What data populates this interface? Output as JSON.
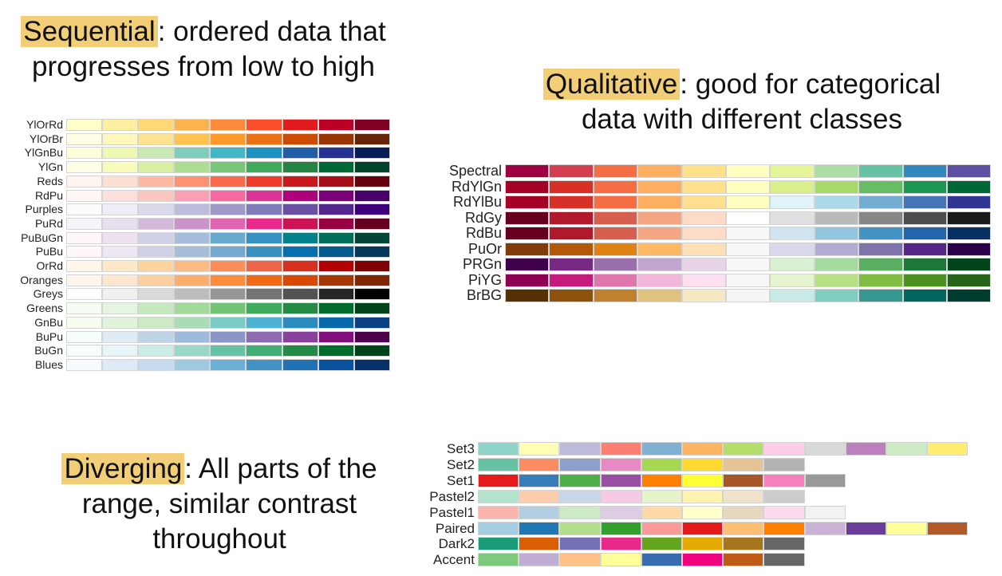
{
  "sequential": {
    "caption_highlight": "Sequential",
    "caption_line1_rest": ": ordered data that",
    "caption_line2": "progresses from low to high",
    "palettes": [
      {
        "name": "YlOrRd",
        "colors": [
          "#ffffcc",
          "#ffeda0",
          "#fed976",
          "#feb24c",
          "#fd8d3c",
          "#fc4e2a",
          "#e31a1c",
          "#bd0026",
          "#800026"
        ]
      },
      {
        "name": "YlOrBr",
        "colors": [
          "#ffffe5",
          "#fff7bc",
          "#fee391",
          "#fec44f",
          "#fe9929",
          "#ec7014",
          "#cc4c02",
          "#993404",
          "#662506"
        ]
      },
      {
        "name": "YlGnBu",
        "colors": [
          "#ffffd9",
          "#edf8b1",
          "#c7e9b4",
          "#7fcdbb",
          "#41b6c4",
          "#1d91c0",
          "#225ea8",
          "#253494",
          "#081d58"
        ]
      },
      {
        "name": "YlGn",
        "colors": [
          "#ffffe5",
          "#f7fcb9",
          "#d9f0a3",
          "#addd8e",
          "#78c679",
          "#41ab5d",
          "#238443",
          "#006837",
          "#004529"
        ]
      },
      {
        "name": "Reds",
        "colors": [
          "#fff5f0",
          "#fee0d2",
          "#fcbba1",
          "#fc9272",
          "#fb6a4a",
          "#ef3b2c",
          "#cb181d",
          "#a50f15",
          "#67000d"
        ]
      },
      {
        "name": "RdPu",
        "colors": [
          "#fff7f3",
          "#fde0dd",
          "#fcc5c0",
          "#fa9fb5",
          "#f768a1",
          "#dd3497",
          "#ae017e",
          "#7a0177",
          "#49006a"
        ]
      },
      {
        "name": "Purples",
        "colors": [
          "#fcfbfd",
          "#efedf5",
          "#dadaeb",
          "#bcbddc",
          "#9e9ac8",
          "#807dba",
          "#6a51a3",
          "#54278f",
          "#3f007d"
        ]
      },
      {
        "name": "PuRd",
        "colors": [
          "#f7f4f9",
          "#e7e1ef",
          "#d4b9da",
          "#c994c7",
          "#df65b0",
          "#e7298a",
          "#ce1256",
          "#980043",
          "#67001f"
        ]
      },
      {
        "name": "PuBuGn",
        "colors": [
          "#fff7fb",
          "#ece2f0",
          "#d0d1e6",
          "#a6bddb",
          "#67a9cf",
          "#3690c0",
          "#02818a",
          "#016c59",
          "#014636"
        ]
      },
      {
        "name": "PuBu",
        "colors": [
          "#fff7fb",
          "#ece7f2",
          "#d0d1e6",
          "#a6bddb",
          "#74a9cf",
          "#3690c0",
          "#0570b0",
          "#045a8d",
          "#023858"
        ]
      },
      {
        "name": "OrRd",
        "colors": [
          "#fff7ec",
          "#fee8c8",
          "#fdd49e",
          "#fdbb84",
          "#fc8d59",
          "#ef6548",
          "#d7301f",
          "#b30000",
          "#7f0000"
        ]
      },
      {
        "name": "Oranges",
        "colors": [
          "#fff5eb",
          "#fee6ce",
          "#fdd0a2",
          "#fdae6b",
          "#fd8d3c",
          "#f16913",
          "#d94801",
          "#a63603",
          "#7f2704"
        ]
      },
      {
        "name": "Greys",
        "colors": [
          "#ffffff",
          "#f0f0f0",
          "#d9d9d9",
          "#bdbdbd",
          "#969696",
          "#737373",
          "#525252",
          "#252525",
          "#000000"
        ]
      },
      {
        "name": "Greens",
        "colors": [
          "#f7fcf5",
          "#e5f5e0",
          "#c7e9c0",
          "#a1d99b",
          "#74c476",
          "#41ab5d",
          "#238b45",
          "#006d2c",
          "#00441b"
        ]
      },
      {
        "name": "GnBu",
        "colors": [
          "#f7fcf0",
          "#e0f3db",
          "#ccebc5",
          "#a8ddb5",
          "#7bccc4",
          "#4eb3d3",
          "#2b8cbe",
          "#0868ac",
          "#084081"
        ]
      },
      {
        "name": "BuPu",
        "colors": [
          "#f7fcfd",
          "#e0ecf4",
          "#bfd3e6",
          "#9ebcda",
          "#8c96c6",
          "#8c6bb1",
          "#88419d",
          "#810f7c",
          "#4d004b"
        ]
      },
      {
        "name": "BuGn",
        "colors": [
          "#f7fcfd",
          "#e5f5f9",
          "#ccece6",
          "#99d8c9",
          "#66c2a4",
          "#41ae76",
          "#238b45",
          "#006d2c",
          "#00441b"
        ]
      },
      {
        "name": "Blues",
        "colors": [
          "#f7fbff",
          "#deebf7",
          "#c6dbef",
          "#9ecae1",
          "#6baed6",
          "#4292c6",
          "#2171b5",
          "#08519c",
          "#08306b"
        ]
      }
    ]
  },
  "qualitative": {
    "caption_highlight": "Qualitative",
    "caption_line1_rest": ": good for categorical",
    "caption_line2": "data with different classes",
    "palettes": [
      {
        "name": "Spectral",
        "colors": [
          "#9e0142",
          "#d53e4f",
          "#f46d43",
          "#fdae61",
          "#fee08b",
          "#ffffbf",
          "#e6f598",
          "#abdda4",
          "#66c2a5",
          "#3288bd",
          "#5e4fa2"
        ]
      },
      {
        "name": "RdYlGn",
        "colors": [
          "#a50026",
          "#d73027",
          "#f46d43",
          "#fdae61",
          "#fee08b",
          "#ffffbf",
          "#d9ef8b",
          "#a6d96a",
          "#66bd63",
          "#1a9850",
          "#006837"
        ]
      },
      {
        "name": "RdYlBu",
        "colors": [
          "#a50026",
          "#d73027",
          "#f46d43",
          "#fdae61",
          "#fee090",
          "#ffffbf",
          "#e0f3f8",
          "#abd9e9",
          "#74add1",
          "#4575b4",
          "#313695"
        ]
      },
      {
        "name": "RdGy",
        "colors": [
          "#67001f",
          "#b2182b",
          "#d6604d",
          "#f4a582",
          "#fddbc7",
          "#ffffff",
          "#e0e0e0",
          "#bababa",
          "#878787",
          "#4d4d4d",
          "#1a1a1a"
        ]
      },
      {
        "name": "RdBu",
        "colors": [
          "#67001f",
          "#b2182b",
          "#d6604d",
          "#f4a582",
          "#fddbc7",
          "#f7f7f7",
          "#d1e5f0",
          "#92c5de",
          "#4393c3",
          "#2166ac",
          "#053061"
        ]
      },
      {
        "name": "PuOr",
        "colors": [
          "#7f3b08",
          "#b35806",
          "#e08214",
          "#fdb863",
          "#fee0b6",
          "#f7f7f7",
          "#d8daeb",
          "#b2abd2",
          "#8073ac",
          "#542788",
          "#2d004b"
        ]
      },
      {
        "name": "PRGn",
        "colors": [
          "#40004b",
          "#762a83",
          "#9970ab",
          "#c2a5cf",
          "#e7d4e8",
          "#f7f7f7",
          "#d9f0d3",
          "#a6dba0",
          "#5aae61",
          "#1b7837",
          "#00441b"
        ]
      },
      {
        "name": "PiYG",
        "colors": [
          "#8e0152",
          "#c51b7d",
          "#de77ae",
          "#f1b6da",
          "#fde0ef",
          "#f7f7f7",
          "#e6f5d0",
          "#b8e186",
          "#7fbc41",
          "#4d9221",
          "#276419"
        ]
      },
      {
        "name": "BrBG",
        "colors": [
          "#543005",
          "#8c510a",
          "#bf812d",
          "#dfc27d",
          "#f6e8c3",
          "#f5f5f5",
          "#c7eae5",
          "#80cdc1",
          "#35978f",
          "#01665e",
          "#003c30"
        ]
      }
    ]
  },
  "diverging": {
    "caption_highlight": "Diverging",
    "caption_line1_rest": ": All parts of the",
    "caption_line2": "range, similar contrast",
    "caption_line3": "throughout",
    "palettes": [
      {
        "name": "Set3",
        "colors": [
          "#8dd3c7",
          "#ffffb3",
          "#bebada",
          "#fb8072",
          "#80b1d3",
          "#fdb462",
          "#b3de69",
          "#fccde5",
          "#d9d9d9",
          "#bc80bd",
          "#ccebc5",
          "#ffed6f"
        ]
      },
      {
        "name": "Set2",
        "colors": [
          "#66c2a5",
          "#fc8d62",
          "#8da0cb",
          "#e78ac3",
          "#a6d854",
          "#ffd92f",
          "#e5c494",
          "#b3b3b3"
        ]
      },
      {
        "name": "Set1",
        "colors": [
          "#e41a1c",
          "#377eb8",
          "#4daf4a",
          "#984ea3",
          "#ff7f00",
          "#ffff33",
          "#a65628",
          "#f781bf",
          "#999999"
        ]
      },
      {
        "name": "Pastel2",
        "colors": [
          "#b3e2cd",
          "#fdcdac",
          "#cbd5e8",
          "#f4cae4",
          "#e6f5c9",
          "#fff2ae",
          "#f1e2cc",
          "#cccccc"
        ]
      },
      {
        "name": "Pastel1",
        "colors": [
          "#fbb4ae",
          "#b3cde3",
          "#ccebc5",
          "#decbe4",
          "#fed9a6",
          "#ffffcc",
          "#e5d8bd",
          "#fddaec",
          "#f2f2f2"
        ]
      },
      {
        "name": "Paired",
        "colors": [
          "#a6cee3",
          "#1f78b4",
          "#b2df8a",
          "#33a02c",
          "#fb9a99",
          "#e31a1c",
          "#fdbf6f",
          "#ff7f00",
          "#cab2d6",
          "#6a3d9a",
          "#ffff99",
          "#b15928"
        ]
      },
      {
        "name": "Dark2",
        "colors": [
          "#1b9e77",
          "#d95f02",
          "#7570b3",
          "#e7298a",
          "#66a61e",
          "#e6ab02",
          "#a6761d",
          "#666666"
        ]
      },
      {
        "name": "Accent",
        "colors": [
          "#7fc97f",
          "#beaed4",
          "#fdc086",
          "#ffff99",
          "#386cb0",
          "#f0027f",
          "#bf5b17",
          "#666666"
        ]
      }
    ]
  }
}
